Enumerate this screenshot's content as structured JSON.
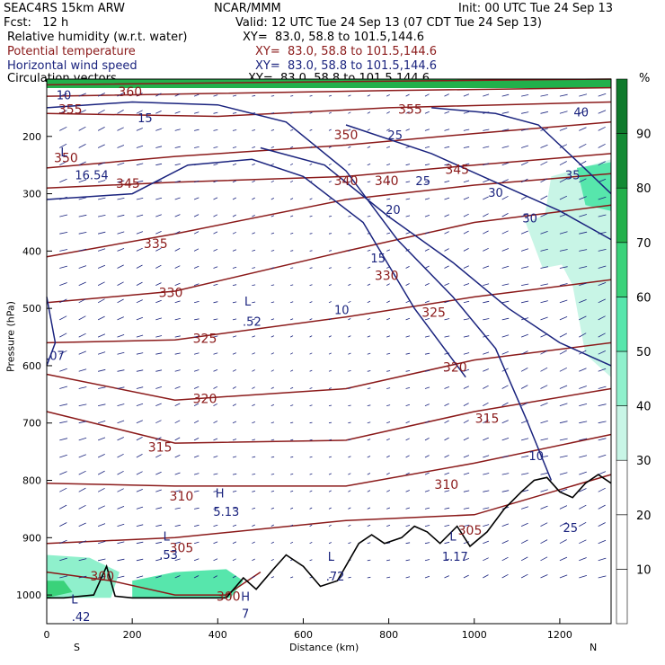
{
  "header": {
    "model": "SEAC4RS 15km ARW",
    "center": "NCAR/MMM",
    "init": "Init: 00 UTC Tue 24 Sep 13",
    "fcst": "Fcst:   12 h",
    "valid": "Valid: 12 UTC Tue 24 Sep 13 (07 CDT Tue 24 Sep 13)",
    "fields": [
      {
        "name": "Relative humidity (w.r.t. water)",
        "xy": "XY=  83.0, 58.8 to 101.5,144.6",
        "color": "#000000"
      },
      {
        "name": "Potential temperature",
        "xy": "XY=  83.0, 58.8 to 101.5,144.6",
        "color": "#8b1a1a"
      },
      {
        "name": "Horizontal wind speed",
        "xy": "XY=  83.0, 58.8 to 101.5,144.6",
        "color": "#1a237e"
      },
      {
        "name": "Circulation vectors",
        "xy": "XY=  83.0, 58.8 to 101.5,144.6",
        "color": "#000000"
      }
    ]
  },
  "chart_data": {
    "type": "cross-section",
    "xlabel": "Distance (km)",
    "ylabel": "Pressure (hPa)",
    "x_ticks": [
      0,
      200,
      400,
      600,
      800,
      1000,
      1200
    ],
    "y_ticks": [
      200,
      300,
      400,
      500,
      600,
      700,
      800,
      900,
      1000
    ],
    "xlim": [
      0,
      1320
    ],
    "ylim": [
      1050,
      100
    ],
    "left_end": "S",
    "right_end": "N",
    "colorbar": {
      "unit": "%",
      "ticks": [
        10,
        20,
        30,
        40,
        50,
        60,
        70,
        80,
        90
      ],
      "colors": [
        "#ffffff",
        "#ffffff",
        "#ffffff",
        "#c8f5e6",
        "#8ff0cc",
        "#57e6ac",
        "#3ad27a",
        "#22b04b",
        "#138a34"
      ]
    },
    "theta_labels": [
      {
        "text": "360",
        "x": 195,
        "p": 130
      },
      {
        "text": "355",
        "x": 55,
        "p": 160
      },
      {
        "text": "355",
        "x": 850,
        "p": 160
      },
      {
        "text": "350",
        "x": 700,
        "p": 205
      },
      {
        "text": "350",
        "x": 45,
        "p": 245
      },
      {
        "text": "345",
        "x": 190,
        "p": 290
      },
      {
        "text": "345",
        "x": 960,
        "p": 265
      },
      {
        "text": "340",
        "x": 700,
        "p": 285
      },
      {
        "text": "340",
        "x": 795,
        "p": 285
      },
      {
        "text": "335",
        "x": 255,
        "p": 395
      },
      {
        "text": "330",
        "x": 290,
        "p": 480
      },
      {
        "text": "330",
        "x": 795,
        "p": 450
      },
      {
        "text": "325",
        "x": 370,
        "p": 560
      },
      {
        "text": "325",
        "x": 905,
        "p": 515
      },
      {
        "text": "320",
        "x": 370,
        "p": 665
      },
      {
        "text": "320",
        "x": 955,
        "p": 610
      },
      {
        "text": "315",
        "x": 265,
        "p": 750
      },
      {
        "text": "315",
        "x": 1030,
        "p": 700
      },
      {
        "text": "310",
        "x": 315,
        "p": 835
      },
      {
        "text": "310",
        "x": 935,
        "p": 815
      },
      {
        "text": "305",
        "x": 315,
        "p": 925
      },
      {
        "text": "305",
        "x": 990,
        "p": 895
      },
      {
        "text": "300",
        "x": 130,
        "p": 975
      },
      {
        "text": "300",
        "x": 425,
        "p": 1010
      }
    ],
    "wind_labels": [
      {
        "text": "10",
        "x": 40,
        "p": 135
      },
      {
        "text": "15",
        "x": 230,
        "p": 175
      },
      {
        "text": "16.54",
        "x": 105,
        "p": 275
      },
      {
        "text": "25",
        "x": 815,
        "p": 205
      },
      {
        "text": "25",
        "x": 880,
        "p": 285
      },
      {
        "text": "20",
        "x": 810,
        "p": 335
      },
      {
        "text": "30",
        "x": 1050,
        "p": 305
      },
      {
        "text": "30",
        "x": 1130,
        "p": 350
      },
      {
        "text": "35",
        "x": 1230,
        "p": 275
      },
      {
        "text": "40",
        "x": 1250,
        "p": 165
      },
      {
        "text": "15",
        "x": 775,
        "p": 420
      },
      {
        "text": "10",
        "x": 690,
        "p": 510
      },
      {
        "text": ".07",
        "x": 20,
        "p": 590
      },
      {
        "text": "10",
        "x": 1145,
        "p": 765
      },
      {
        "text": "25",
        "x": 1225,
        "p": 890
      }
    ],
    "extrema": [
      {
        "text": "L",
        "x": 40,
        "p": 235
      },
      {
        "text": "L",
        "x": 470,
        "p": 495
      },
      {
        "text": ".52",
        "x": 480,
        "p": 530
      },
      {
        "text": "H",
        "x": 405,
        "p": 830
      },
      {
        "text": "5.13",
        "x": 420,
        "p": 862
      },
      {
        "text": "L",
        "x": 280,
        "p": 905
      },
      {
        "text": ".53",
        "x": 285,
        "p": 937
      },
      {
        "text": "L",
        "x": 665,
        "p": 940
      },
      {
        "text": ".72",
        "x": 675,
        "p": 975
      },
      {
        "text": "L",
        "x": 950,
        "p": 905
      },
      {
        "text": "1.17",
        "x": 955,
        "p": 940
      },
      {
        "text": "L",
        "x": 65,
        "p": 1015
      },
      {
        "text": ".42",
        "x": 80,
        "p": 1045
      },
      {
        "text": "H",
        "x": 465,
        "p": 1010
      },
      {
        "text": "7",
        "x": 465,
        "p": 1040
      }
    ]
  }
}
